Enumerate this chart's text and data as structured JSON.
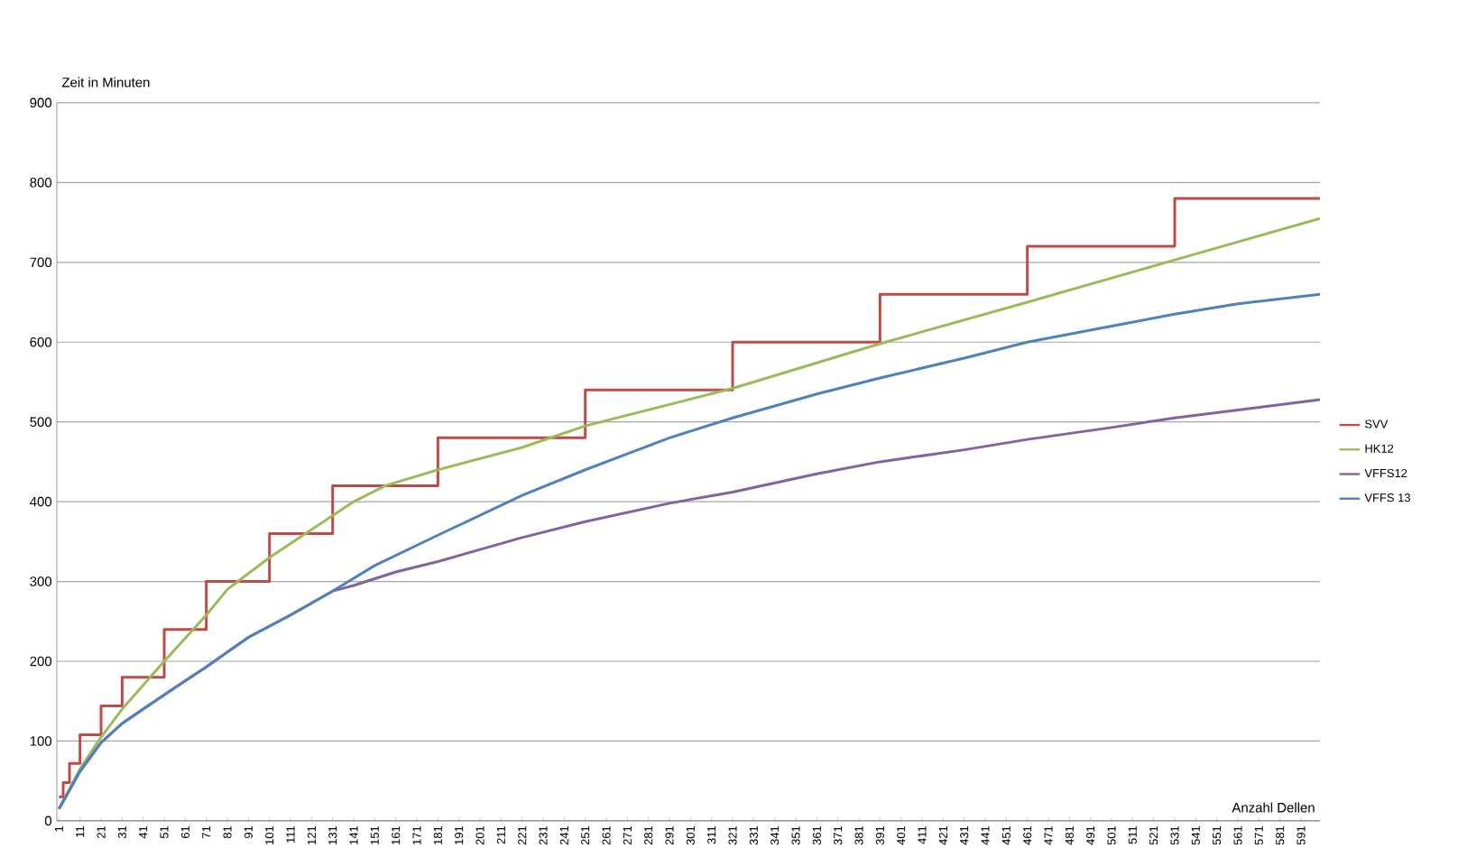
{
  "chart_data": {
    "type": "line",
    "xlabel": "Anzahl Dellen",
    "ylabel": "Zeit in Minuten",
    "xlim": [
      0,
      600
    ],
    "ylim": [
      0,
      900
    ],
    "xticks": [
      1,
      11,
      21,
      31,
      41,
      51,
      61,
      71,
      81,
      91,
      101,
      111,
      121,
      131,
      141,
      151,
      161,
      171,
      181,
      191,
      201,
      211,
      221,
      231,
      241,
      251,
      261,
      271,
      281,
      291,
      301,
      311,
      321,
      331,
      341,
      351,
      361,
      371,
      381,
      391,
      401,
      411,
      421,
      431,
      441,
      451,
      461,
      471,
      481,
      491,
      501,
      511,
      521,
      531,
      541,
      551,
      561,
      571,
      581,
      591
    ],
    "yticks": [
      0,
      100,
      200,
      300,
      400,
      500,
      600,
      700,
      800,
      900
    ],
    "grid": "y",
    "legend": "right",
    "series": [
      {
        "name": "SVV",
        "type": "step",
        "color": "#be4b48",
        "x": [
          1,
          3,
          6,
          11,
          21,
          31,
          51,
          71,
          101,
          131,
          181,
          251,
          321,
          391,
          461,
          531,
          600
        ],
        "values": [
          30,
          48,
          72,
          108,
          144,
          180,
          240,
          300,
          360,
          420,
          480,
          540,
          600,
          660,
          720,
          780,
          780
        ]
      },
      {
        "name": "HK12",
        "color": "#9bbb59",
        "x": [
          1,
          11,
          21,
          31,
          51,
          71,
          81,
          101,
          121,
          141,
          156,
          181,
          221,
          251,
          321,
          391,
          461,
          531,
          600
        ],
        "values": [
          15,
          65,
          105,
          140,
          200,
          258,
          290,
          330,
          365,
          400,
          420,
          440,
          468,
          495,
          542,
          598,
          650,
          703,
          755
        ]
      },
      {
        "name": "VFFS12",
        "color": "#8064a2",
        "x": [
          1,
          11,
          21,
          31,
          41,
          51,
          71,
          91,
          111,
          131,
          141,
          161,
          181,
          221,
          251,
          291,
          321,
          361,
          391,
          431,
          461,
          501,
          531,
          561,
          600
        ],
        "values": [
          15,
          62,
          98,
          122,
          140,
          158,
          193,
          230,
          258,
          288,
          295,
          312,
          325,
          355,
          375,
          398,
          412,
          435,
          450,
          465,
          478,
          493,
          505,
          515,
          528
        ]
      },
      {
        "name": "VFFS 13",
        "color": "#4f81bd",
        "x": [
          1,
          11,
          21,
          31,
          41,
          51,
          71,
          91,
          111,
          131,
          151,
          181,
          221,
          251,
          291,
          321,
          361,
          391,
          431,
          461,
          501,
          531,
          561,
          600
        ],
        "values": [
          15,
          62,
          98,
          122,
          140,
          158,
          193,
          230,
          258,
          288,
          320,
          358,
          408,
          440,
          480,
          505,
          535,
          555,
          580,
          600,
          620,
          635,
          648,
          660
        ]
      }
    ]
  }
}
